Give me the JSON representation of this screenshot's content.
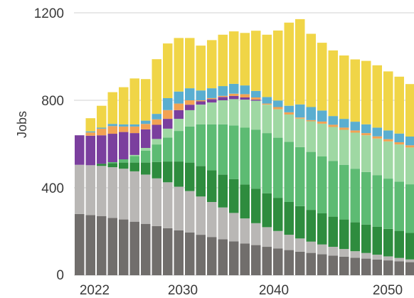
{
  "chart_data": {
    "type": "bar",
    "stacked": true,
    "ylabel": "Jobs",
    "ylim": [
      0,
      1200
    ],
    "yticks": [
      0,
      400,
      800,
      1200
    ],
    "xtick_labels": [
      "2022",
      "2030",
      "2040",
      "2050"
    ],
    "grid": true,
    "legend": "none",
    "categories": [
      2020,
      2021,
      2022,
      2023,
      2024,
      2025,
      2026,
      2027,
      2028,
      2029,
      2030,
      2031,
      2032,
      2033,
      2034,
      2035,
      2036,
      2037,
      2038,
      2039,
      2040,
      2041,
      2042,
      2043,
      2044,
      2045,
      2046,
      2047,
      2048,
      2049,
      2050,
      2051
    ],
    "series": [
      {
        "color": "#716e6c",
        "values": [
          280,
          275,
          270,
          262,
          255,
          245,
          235,
          225,
          215,
          205,
          195,
          185,
          175,
          165,
          155,
          145,
          138,
          130,
          122,
          115,
          108,
          102,
          96,
          90,
          85,
          80,
          76,
          72,
          68,
          64,
          60,
          57
        ]
      },
      {
        "color": "#b9b7b5",
        "values": [
          225,
          228,
          230,
          232,
          232,
          230,
          225,
          218,
          210,
          200,
          190,
          175,
          160,
          145,
          130,
          115,
          100,
          90,
          80,
          70,
          60,
          52,
          45,
          40,
          35,
          30,
          26,
          22,
          18,
          15,
          12,
          10
        ]
      },
      {
        "color": "#2e8c3e",
        "values": [
          0,
          0,
          10,
          18,
          28,
          40,
          55,
          75,
          95,
          115,
          130,
          140,
          145,
          150,
          155,
          155,
          158,
          155,
          152,
          150,
          148,
          145,
          142,
          138,
          135,
          132,
          130,
          128,
          126,
          124,
          122,
          120
        ]
      },
      {
        "color": "#5dbb73",
        "values": [
          0,
          0,
          0,
          5,
          15,
          30,
          55,
          80,
          110,
          140,
          165,
          190,
          210,
          230,
          245,
          260,
          270,
          275,
          275,
          275,
          270,
          265,
          260,
          255,
          250,
          245,
          240,
          235,
          230,
          225,
          222,
          220
        ]
      },
      {
        "color": "#9fd8a3",
        "values": [
          0,
          0,
          0,
          0,
          0,
          5,
          12,
          25,
          40,
          55,
          75,
          90,
          100,
          110,
          120,
          128,
          132,
          130,
          130,
          125,
          130,
          140,
          150,
          155,
          160,
          165,
          168,
          168,
          170,
          170,
          168,
          166
        ]
      },
      {
        "color": "#7b3f9e",
        "values": [
          135,
          135,
          130,
          130,
          125,
          100,
          85,
          65,
          45,
          40,
          25,
          15,
          15,
          15,
          15,
          10,
          5,
          0,
          0,
          0,
          0,
          0,
          0,
          0,
          0,
          0,
          0,
          0,
          0,
          0,
          0,
          0
        ]
      },
      {
        "color": "#f2a253",
        "values": [
          0,
          15,
          30,
          35,
          25,
          30,
          25,
          25,
          40,
          30,
          20,
          5,
          5,
          5,
          10,
          15,
          10,
          5,
          10,
          10,
          5,
          5,
          10,
          10,
          10,
          10,
          10,
          10,
          10,
          10,
          10,
          10
        ]
      },
      {
        "color": "#5aaed0",
        "values": [
          0,
          5,
          5,
          10,
          10,
          10,
          15,
          25,
          55,
          55,
          55,
          45,
          45,
          45,
          45,
          40,
          30,
          30,
          30,
          30,
          60,
          60,
          50,
          40,
          40,
          40,
          40,
          40,
          40,
          40,
          40,
          40
        ]
      },
      {
        "color": "#f0d547",
        "values": [
          0,
          60,
          100,
          145,
          170,
          210,
          190,
          250,
          250,
          245,
          230,
          205,
          220,
          235,
          240,
          240,
          275,
          285,
          320,
          380,
          390,
          335,
          310,
          300,
          290,
          285,
          290,
          285,
          270,
          260,
          240,
          230
        ]
      }
    ]
  }
}
